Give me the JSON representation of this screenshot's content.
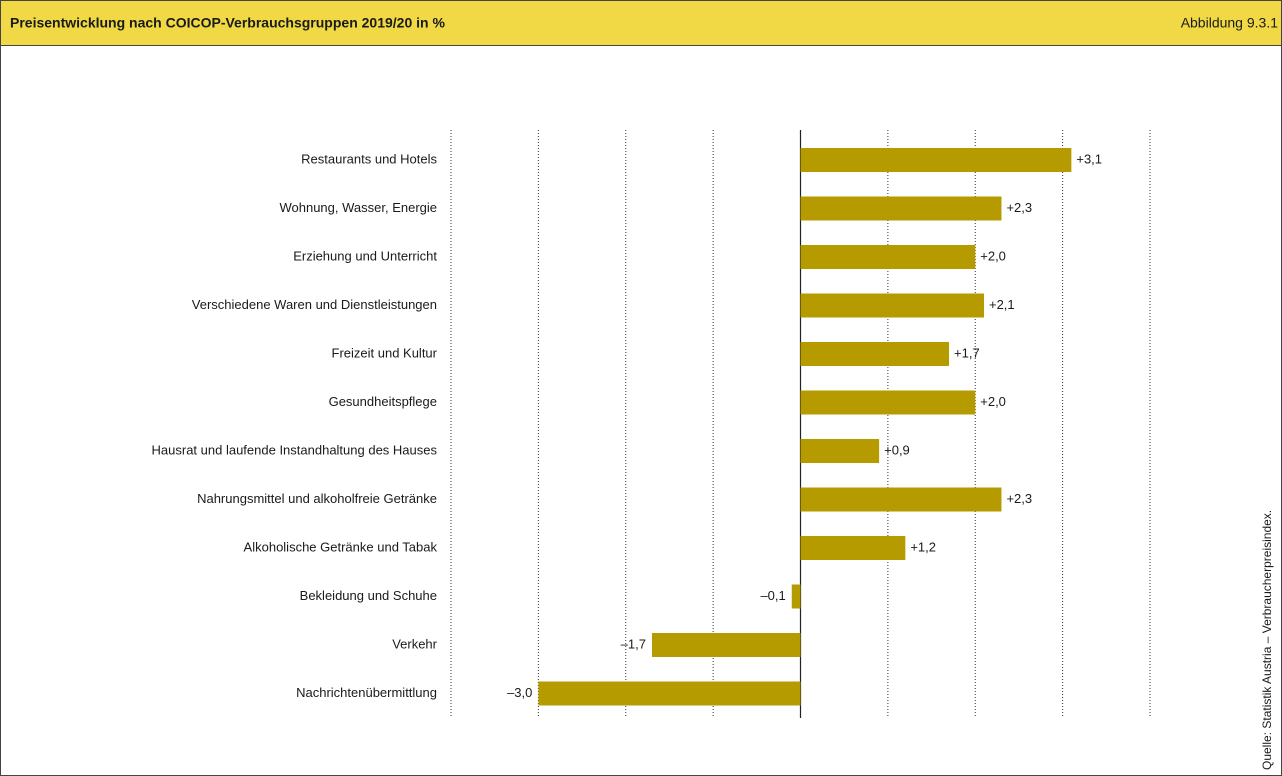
{
  "chart_data": {
    "type": "bar",
    "orientation": "horizontal",
    "title": "Preisentwicklung nach COICOP-Verbrauchsgruppen 2019/20 in %",
    "figure_label": "Abbildung 9.3.1",
    "source": "Quelle: Statistik Austria – Verbraucherpreisindex.",
    "categories": [
      "Restaurants und Hotels",
      "Wohnung, Wasser, Energie",
      "Erziehung und Unterricht",
      "Verschiedene Waren und Dienstleistungen",
      "Freizeit und Kultur",
      "Gesundheitspflege",
      "Hausrat und laufende Instandhaltung des Hauses",
      "Nahrungsmittel und alkoholfreie Getränke",
      "Alkoholische Getränke und Tabak",
      "Bekleidung und Schuhe",
      "Verkehr",
      "Nachrichtenübermittlung"
    ],
    "values": [
      3.1,
      2.3,
      2.0,
      2.1,
      1.7,
      2.0,
      0.9,
      2.3,
      1.2,
      -0.1,
      -1.7,
      -3.0
    ],
    "value_labels": [
      "+3,1",
      "+2,3",
      "+2,0",
      "+2,1",
      "+1,7",
      "+2,0",
      "+0,9",
      "+2,3",
      "+1,2",
      "–0,1",
      "–1,7",
      "–3,0"
    ],
    "color": "#b59a00",
    "xlim": [
      -4,
      4
    ],
    "xticks": [
      -4,
      -3,
      -2,
      -1,
      0,
      1,
      2,
      3,
      4
    ],
    "grid": true
  }
}
